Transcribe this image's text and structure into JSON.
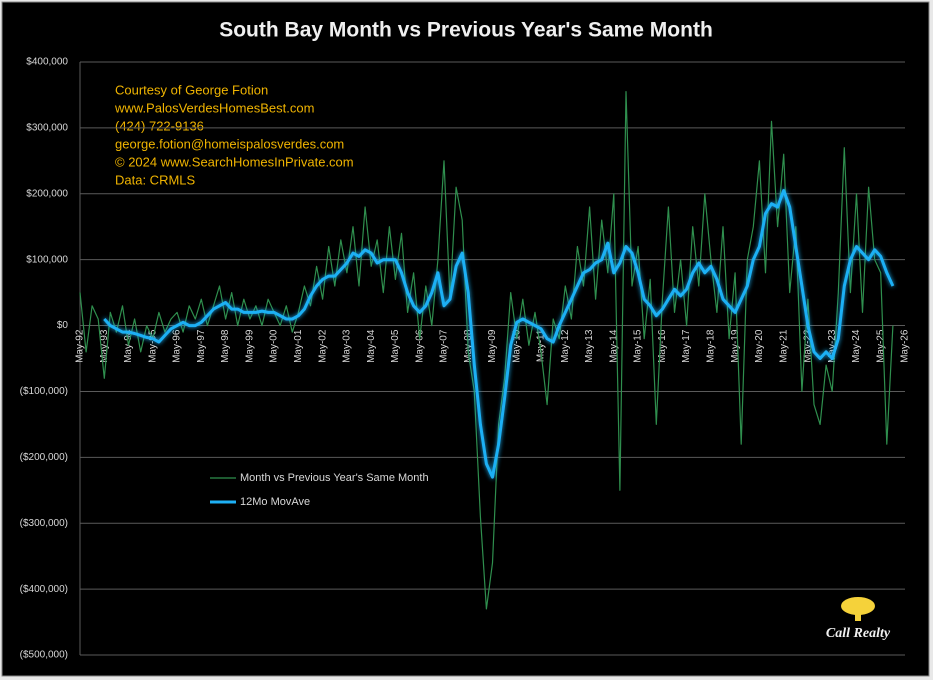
{
  "chart_data": {
    "type": "line",
    "title": "South Bay Month vs Previous Year's Same Month",
    "annotations": [
      "Courtesy of George Fotion",
      "www.PalosVerdesHomesBest.com",
      "(424) 722-9136",
      "george.fotion@homeispalosverdes.com",
      "© 2024 www.SearchHomesInPrivate.com",
      "Data: CRMLS"
    ],
    "logo": "Call Realty",
    "grid": true,
    "legend": "left",
    "ylim": [
      -500000,
      400000
    ],
    "yticks": [
      {
        "value": 400000,
        "label": "$400,000"
      },
      {
        "value": 300000,
        "label": "$300,000"
      },
      {
        "value": 200000,
        "label": "$200,000"
      },
      {
        "value": 100000,
        "label": "$100,000"
      },
      {
        "value": 0,
        "label": "$0"
      },
      {
        "value": -100000,
        "label": "($100,000)"
      },
      {
        "value": -200000,
        "label": "($200,000)"
      },
      {
        "value": -300000,
        "label": "($300,000)"
      },
      {
        "value": -400000,
        "label": "($400,000)"
      },
      {
        "value": -500000,
        "label": "($500,000)"
      }
    ],
    "categories": [
      "May-92",
      null,
      null,
      null,
      "May-93",
      null,
      null,
      null,
      "May-94",
      null,
      null,
      null,
      "May-95",
      null,
      null,
      null,
      "May-96",
      null,
      null,
      null,
      "May-97",
      null,
      null,
      null,
      "May-98",
      null,
      null,
      null,
      "May-99",
      null,
      null,
      null,
      "May-00",
      null,
      null,
      null,
      "May-01",
      null,
      null,
      null,
      "May-02",
      null,
      null,
      null,
      "May-03",
      null,
      null,
      null,
      "May-04",
      null,
      null,
      null,
      "May-05",
      null,
      null,
      null,
      "May-06",
      null,
      null,
      null,
      "May-07",
      null,
      null,
      null,
      "May-08",
      null,
      null,
      null,
      "May-09",
      null,
      null,
      null,
      "May-10",
      null,
      null,
      null,
      "May-11",
      null,
      null,
      null,
      "May-12",
      null,
      null,
      null,
      "May-13",
      null,
      null,
      null,
      "May-14",
      null,
      null,
      null,
      "May-15",
      null,
      null,
      null,
      "May-16",
      null,
      null,
      null,
      "May-17",
      null,
      null,
      null,
      "May-18",
      null,
      null,
      null,
      "May-19",
      null,
      null,
      null,
      "May-20",
      null,
      null,
      null,
      "May-21",
      null,
      null,
      null,
      "May-22",
      null,
      null,
      null,
      "May-23",
      null,
      null,
      null,
      "May-24",
      null,
      null,
      null,
      "May-25",
      null,
      null,
      null,
      "May-26"
    ],
    "series": [
      {
        "name": "Month vs Previous Year's Same Month",
        "color": "#2f8f4e",
        "width": 1.2,
        "values": [
          50000,
          -40000,
          30000,
          10000,
          -80000,
          20000,
          -10000,
          30000,
          -30000,
          10000,
          -40000,
          0,
          -20000,
          20000,
          -10000,
          10000,
          20000,
          -10000,
          30000,
          10000,
          40000,
          0,
          30000,
          60000,
          10000,
          50000,
          0,
          40000,
          10000,
          30000,
          0,
          40000,
          20000,
          0,
          30000,
          -10000,
          20000,
          60000,
          30000,
          90000,
          40000,
          120000,
          60000,
          130000,
          80000,
          150000,
          60000,
          180000,
          90000,
          130000,
          50000,
          150000,
          70000,
          140000,
          20000,
          80000,
          -20000,
          60000,
          0,
          100000,
          250000,
          40000,
          210000,
          160000,
          -40000,
          -100000,
          -290000,
          -430000,
          -360000,
          -150000,
          -80000,
          50000,
          -20000,
          40000,
          -30000,
          20000,
          -40000,
          -120000,
          10000,
          -20000,
          60000,
          10000,
          120000,
          60000,
          180000,
          40000,
          160000,
          80000,
          200000,
          -250000,
          355000,
          60000,
          120000,
          -20000,
          70000,
          -150000,
          40000,
          180000,
          20000,
          100000,
          0,
          150000,
          60000,
          200000,
          100000,
          20000,
          150000,
          -20000,
          80000,
          -180000,
          100000,
          150000,
          250000,
          80000,
          310000,
          150000,
          260000,
          50000,
          150000,
          -100000,
          40000,
          -120000,
          -150000,
          -60000,
          -100000,
          50000,
          270000,
          50000,
          200000,
          20000,
          210000,
          100000,
          80000,
          -180000,
          0,
          null,
          null
        ]
      },
      {
        "name": "12Mo MovAve",
        "color": "#1eb0f5",
        "width": 3,
        "values": [
          null,
          null,
          null,
          null,
          10000,
          0,
          -5000,
          -10000,
          -10000,
          -12000,
          -15000,
          -18000,
          -20000,
          -25000,
          -15000,
          -5000,
          0,
          5000,
          0,
          0,
          5000,
          15000,
          25000,
          30000,
          35000,
          25000,
          25000,
          20000,
          20000,
          20000,
          22000,
          20000,
          20000,
          15000,
          10000,
          10000,
          15000,
          25000,
          45000,
          60000,
          70000,
          75000,
          75000,
          85000,
          95000,
          110000,
          105000,
          115000,
          110000,
          95000,
          100000,
          100000,
          100000,
          80000,
          50000,
          30000,
          20000,
          30000,
          50000,
          80000,
          30000,
          40000,
          90000,
          110000,
          50000,
          -60000,
          -150000,
          -210000,
          -230000,
          -180000,
          -110000,
          -30000,
          5000,
          10000,
          5000,
          0,
          -5000,
          -20000,
          -25000,
          0,
          20000,
          40000,
          60000,
          80000,
          85000,
          95000,
          100000,
          125000,
          80000,
          95000,
          120000,
          110000,
          80000,
          40000,
          30000,
          15000,
          25000,
          40000,
          55000,
          45000,
          55000,
          80000,
          95000,
          80000,
          90000,
          70000,
          40000,
          30000,
          20000,
          40000,
          60000,
          100000,
          120000,
          170000,
          185000,
          180000,
          205000,
          180000,
          120000,
          60000,
          0,
          -40000,
          -50000,
          -40000,
          -50000,
          -20000,
          60000,
          100000,
          120000,
          110000,
          100000,
          115000,
          105000,
          80000,
          60000,
          null,
          null
        ]
      }
    ]
  }
}
